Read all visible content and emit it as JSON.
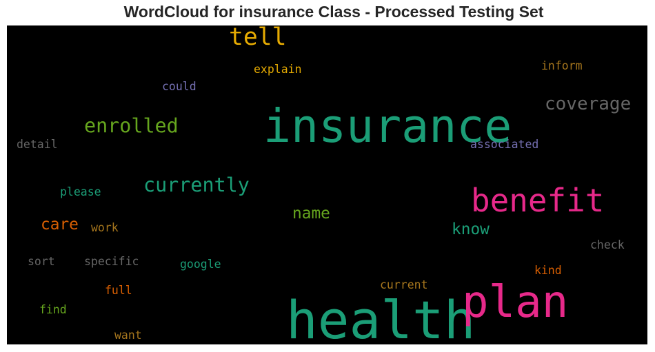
{
  "chart_data": {
    "type": "wordcloud",
    "title": "WordCloud for insurance Class - Processed Testing Set",
    "background": "#000000",
    "words": [
      {
        "text": "health",
        "weight": 1.0,
        "color": "#1b9e77"
      },
      {
        "text": "insurance",
        "weight": 0.88,
        "color": "#1b9e77"
      },
      {
        "text": "plan",
        "weight": 0.85,
        "color": "#e7298a"
      },
      {
        "text": "benefit",
        "weight": 0.62,
        "color": "#e7298a"
      },
      {
        "text": "tell",
        "weight": 0.48,
        "color": "#e6ab02"
      },
      {
        "text": "currently",
        "weight": 0.4,
        "color": "#1b9e77"
      },
      {
        "text": "enrolled",
        "weight": 0.4,
        "color": "#66a61e"
      },
      {
        "text": "coverage",
        "weight": 0.37,
        "color": "#666666"
      },
      {
        "text": "care",
        "weight": 0.33,
        "color": "#d95f02"
      },
      {
        "text": "name",
        "weight": 0.33,
        "color": "#66a61e"
      },
      {
        "text": "know",
        "weight": 0.33,
        "color": "#1b9e77"
      },
      {
        "text": "explain",
        "weight": 0.25,
        "color": "#e6ab02"
      },
      {
        "text": "inform",
        "weight": 0.25,
        "color": "#a6761d"
      },
      {
        "text": "could",
        "weight": 0.25,
        "color": "#7570b3"
      },
      {
        "text": "associated",
        "weight": 0.25,
        "color": "#7570b3"
      },
      {
        "text": "detail",
        "weight": 0.25,
        "color": "#666666"
      },
      {
        "text": "please",
        "weight": 0.25,
        "color": "#1b9e77"
      },
      {
        "text": "work",
        "weight": 0.25,
        "color": "#a6761d"
      },
      {
        "text": "sort",
        "weight": 0.25,
        "color": "#666666"
      },
      {
        "text": "specific",
        "weight": 0.25,
        "color": "#666666"
      },
      {
        "text": "google",
        "weight": 0.25,
        "color": "#1b9e77"
      },
      {
        "text": "check",
        "weight": 0.25,
        "color": "#666666"
      },
      {
        "text": "kind",
        "weight": 0.25,
        "color": "#d95f02"
      },
      {
        "text": "current",
        "weight": 0.25,
        "color": "#a6761d"
      },
      {
        "text": "full",
        "weight": 0.25,
        "color": "#d95f02"
      },
      {
        "text": "find",
        "weight": 0.25,
        "color": "#66a61e"
      },
      {
        "text": "want",
        "weight": 0.25,
        "color": "#a6761d"
      }
    ]
  }
}
